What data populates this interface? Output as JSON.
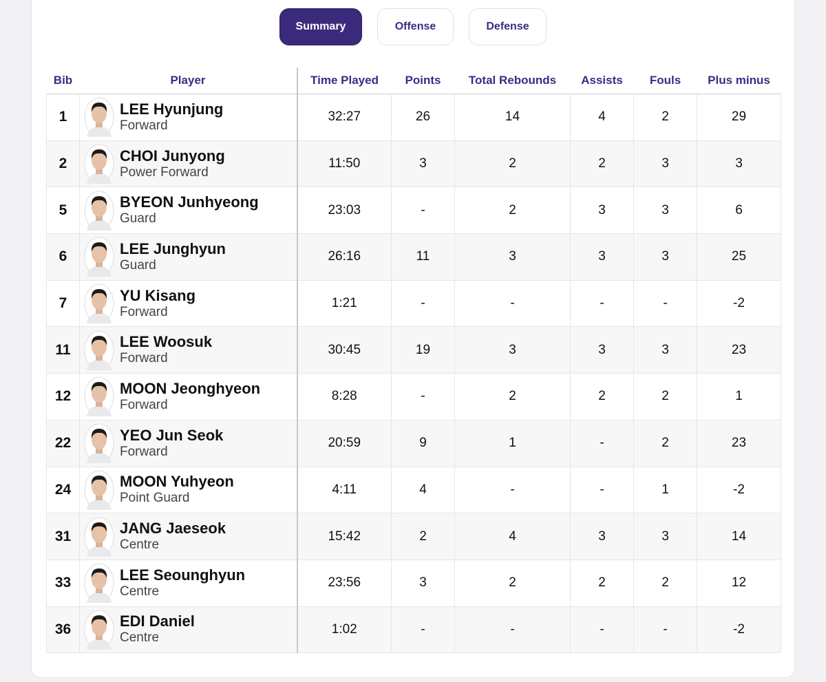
{
  "tabs": [
    "Summary",
    "Offense",
    "Defense"
  ],
  "active_tab": 0,
  "table": {
    "columns": [
      "Bib",
      "Player",
      "Time Played",
      "Points",
      "Total Rebounds",
      "Assists",
      "Fouls",
      "Plus minus"
    ],
    "rows": [
      {
        "bib": "1",
        "name": "LEE Hyunjung",
        "position": "Forward",
        "time": "32:27",
        "points": "26",
        "rebounds": "14",
        "assists": "4",
        "fouls": "2",
        "plus_minus": "29"
      },
      {
        "bib": "2",
        "name": "CHOI Junyong",
        "position": "Power Forward",
        "time": "11:50",
        "points": "3",
        "rebounds": "2",
        "assists": "2",
        "fouls": "3",
        "plus_minus": "3"
      },
      {
        "bib": "5",
        "name": "BYEON Junhyeong",
        "position": "Guard",
        "time": "23:03",
        "points": "-",
        "rebounds": "2",
        "assists": "3",
        "fouls": "3",
        "plus_minus": "6"
      },
      {
        "bib": "6",
        "name": "LEE Junghyun",
        "position": "Guard",
        "time": "26:16",
        "points": "11",
        "rebounds": "3",
        "assists": "3",
        "fouls": "3",
        "plus_minus": "25"
      },
      {
        "bib": "7",
        "name": "YU Kisang",
        "position": "Forward",
        "time": "1:21",
        "points": "-",
        "rebounds": "-",
        "assists": "-",
        "fouls": "-",
        "plus_minus": "-2"
      },
      {
        "bib": "11",
        "name": "LEE Woosuk",
        "position": "Forward",
        "time": "30:45",
        "points": "19",
        "rebounds": "3",
        "assists": "3",
        "fouls": "3",
        "plus_minus": "23"
      },
      {
        "bib": "12",
        "name": "MOON Jeonghyeon",
        "position": "Forward",
        "time": "8:28",
        "points": "-",
        "rebounds": "2",
        "assists": "2",
        "fouls": "2",
        "plus_minus": "1"
      },
      {
        "bib": "22",
        "name": "YEO Jun Seok",
        "position": "Forward",
        "time": "20:59",
        "points": "9",
        "rebounds": "1",
        "assists": "-",
        "fouls": "2",
        "plus_minus": "23"
      },
      {
        "bib": "24",
        "name": "MOON Yuhyeon",
        "position": "Point Guard",
        "time": "4:11",
        "points": "4",
        "rebounds": "-",
        "assists": "-",
        "fouls": "1",
        "plus_minus": "-2"
      },
      {
        "bib": "31",
        "name": "JANG Jaeseok",
        "position": "Centre",
        "time": "15:42",
        "points": "2",
        "rebounds": "4",
        "assists": "3",
        "fouls": "3",
        "plus_minus": "14"
      },
      {
        "bib": "33",
        "name": "LEE Seounghyun",
        "position": "Centre",
        "time": "23:56",
        "points": "3",
        "rebounds": "2",
        "assists": "2",
        "fouls": "2",
        "plus_minus": "12"
      },
      {
        "bib": "36",
        "name": "EDI Daniel",
        "position": "Centre",
        "time": "1:02",
        "points": "-",
        "rebounds": "-",
        "assists": "-",
        "fouls": "-",
        "plus_minus": "-2"
      }
    ]
  }
}
